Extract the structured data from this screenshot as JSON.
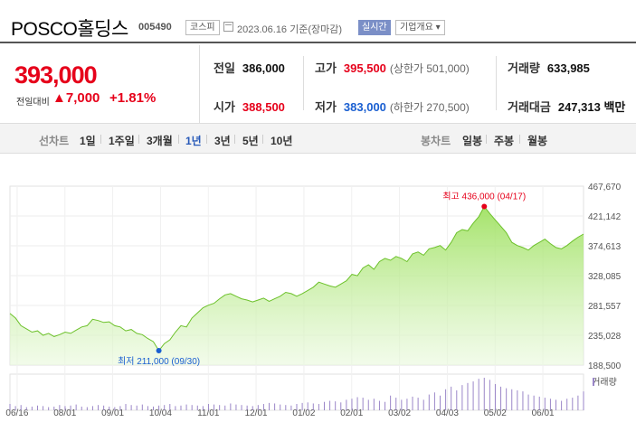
{
  "header": {
    "title": "POSCO홀딩스",
    "code": "005490",
    "market": "코스피",
    "date": "2023.06.16 기준(장마감)",
    "realtime": "실시간",
    "overview": "기업개요 ▾"
  },
  "price": {
    "current": "393,000",
    "change_label": "전일대비",
    "change": "▲7,000",
    "change_pct": "+1.81%"
  },
  "stats": {
    "prev_close": {
      "label": "전일",
      "value": "386,000"
    },
    "open": {
      "label": "시가",
      "value": "388,500"
    },
    "high": {
      "label": "고가",
      "value": "395,500",
      "sub": "(상한가 501,000)"
    },
    "low": {
      "label": "저가",
      "value": "383,000",
      "sub": "(하한가 270,500)"
    },
    "volume": {
      "label": "거래량",
      "value": "633,985"
    },
    "amount": {
      "label": "거래대금",
      "value": "247,313 백만"
    }
  },
  "toolbar": {
    "line_label": "선차트",
    "line_periods": [
      "1일",
      "1주일",
      "3개월",
      "1년",
      "3년",
      "5년",
      "10년"
    ],
    "active_period": "1년",
    "candle_label": "봉차트",
    "candle_periods": [
      "일봉",
      "주봉",
      "월봉"
    ]
  },
  "chart_data": {
    "type": "area",
    "y_ticks": [
      "467,670",
      "421,142",
      "374,613",
      "328,085",
      "281,557",
      "235,028",
      "188,500"
    ],
    "ylim": [
      188500,
      467670
    ],
    "x_ticks": [
      "06/16",
      "08/01",
      "09/01",
      "10/04",
      "11/01",
      "12/01",
      "01/02",
      "02/01",
      "03/02",
      "04/03",
      "05/02",
      "06/01"
    ],
    "annotations": {
      "max": "최고 436,000 (04/17)",
      "min": "최저 211,000 (09/30)"
    },
    "volume_label": "거래량",
    "line_color": "#6cc12a",
    "max_color": "#e6001a",
    "min_color": "#1a5fd1",
    "series": [
      {
        "values": [
          269000,
          262000,
          250000,
          245000,
          240000,
          242000,
          235000,
          238000,
          233000,
          236000,
          240000,
          238000,
          243000,
          248000,
          250000,
          260000,
          258000,
          255000,
          256000,
          250000,
          248000,
          242000,
          244000,
          238000,
          236000,
          230000,
          225000,
          211000,
          222000,
          228000,
          240000,
          250000,
          248000,
          262000,
          270000,
          278000,
          282000,
          285000,
          292000,
          298000,
          300000,
          296000,
          292000,
          290000,
          287000,
          290000,
          293000,
          288000,
          292000,
          296000,
          302000,
          300000,
          296000,
          300000,
          305000,
          310000,
          318000,
          315000,
          312000,
          310000,
          315000,
          320000,
          330000,
          328000,
          340000,
          345000,
          338000,
          350000,
          355000,
          352000,
          358000,
          355000,
          350000,
          362000,
          365000,
          360000,
          370000,
          372000,
          375000,
          368000,
          380000,
          395000,
          400000,
          398000,
          410000,
          420000,
          436000,
          425000,
          415000,
          405000,
          395000,
          380000,
          375000,
          372000,
          368000,
          375000,
          380000,
          385000,
          378000,
          372000,
          370000,
          375000,
          382000,
          388000,
          393000
        ]
      }
    ],
    "volumes": [
      12,
      8,
      10,
      6,
      7,
      9,
      8,
      6,
      7,
      10,
      8,
      9,
      11,
      7,
      6,
      8,
      10,
      9,
      7,
      6,
      8,
      12,
      10,
      9,
      11,
      8,
      7,
      9,
      10,
      12,
      8,
      9,
      11,
      10,
      9,
      8,
      12,
      11,
      10,
      9,
      13,
      11,
      10,
      9,
      8,
      10,
      12,
      14,
      13,
      11,
      10,
      9,
      12,
      14,
      15,
      13,
      12,
      16,
      18,
      17,
      15,
      20,
      22,
      25,
      24,
      20,
      22,
      18,
      16,
      28,
      24,
      20,
      22,
      26,
      24,
      20,
      30,
      34,
      28,
      40,
      45,
      38,
      48,
      52,
      55,
      60,
      62,
      58,
      50,
      45,
      42,
      40,
      38,
      36,
      30,
      28,
      26,
      24,
      22,
      20,
      18,
      22,
      24,
      28,
      36
    ]
  }
}
